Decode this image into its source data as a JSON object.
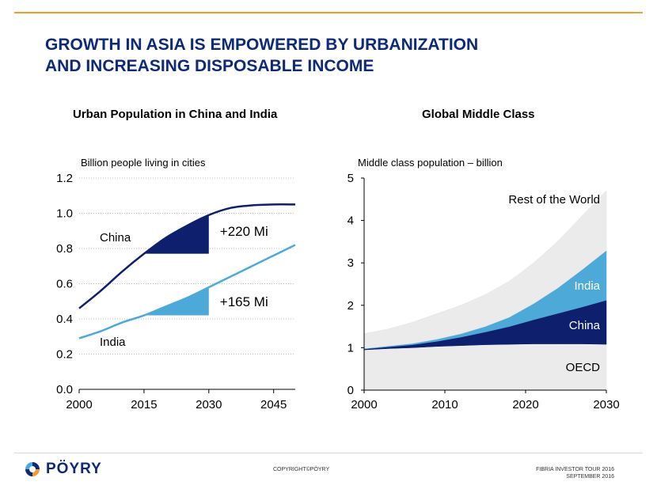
{
  "slide": {
    "title_line1": "GROWTH IN ASIA IS EMPOWERED BY URBANIZATION",
    "title_line2": "AND INCREASING DISPOSABLE INCOME",
    "copyright": "COPYRIGHT©PÖYRY",
    "event_line1": "FIBRIA INVESTOR TOUR 2016",
    "event_line2": "SEPTEMBER 2016",
    "logo_text": "PÖYRY",
    "accent_color": "#f39c30",
    "brand_color": "#0d2a7a"
  },
  "chart_data": [
    {
      "type": "line",
      "title": "Urban Population in China and India",
      "ylabel": "Billion people living in cities",
      "xlim": [
        2000,
        2050
      ],
      "ylim": [
        0,
        1.2
      ],
      "yticks": [
        "0.0",
        "0.2",
        "0.4",
        "0.6",
        "0.8",
        "1.0",
        "1.2"
      ],
      "xticks": [
        "2000",
        "2015",
        "2030",
        "2045"
      ],
      "series": [
        {
          "name": "China",
          "color": "#0d1f6d",
          "x": [
            2000,
            2005,
            2010,
            2015,
            2020,
            2025,
            2030,
            2035,
            2040,
            2045,
            2050
          ],
          "y": [
            0.46,
            0.56,
            0.67,
            0.77,
            0.86,
            0.93,
            0.99,
            1.03,
            1.045,
            1.05,
            1.05
          ]
        },
        {
          "name": "India",
          "color": "#4da9d8",
          "x": [
            2000,
            2005,
            2010,
            2015,
            2020,
            2025,
            2030,
            2035,
            2040,
            2045,
            2050
          ],
          "y": [
            0.29,
            0.33,
            0.38,
            0.42,
            0.47,
            0.52,
            0.58,
            0.64,
            0.7,
            0.76,
            0.82
          ]
        }
      ],
      "annotations": [
        {
          "text": "+220 Mi",
          "series": "China",
          "from_year": 2015,
          "to_year": 2030
        },
        {
          "text": "+165 Mi",
          "series": "India",
          "from_year": 2015,
          "to_year": 2030
        }
      ]
    },
    {
      "type": "area",
      "title": "Global Middle Class",
      "ylabel": "Middle class population – billion",
      "xlim": [
        2000,
        2030
      ],
      "ylim": [
        0,
        5
      ],
      "yticks": [
        "0",
        "1",
        "2",
        "3",
        "4",
        "5"
      ],
      "xticks": [
        "2000",
        "2010",
        "2020",
        "2030"
      ],
      "x": [
        2000,
        2003,
        2006,
        2009,
        2012,
        2015,
        2018,
        2021,
        2024,
        2027,
        2030
      ],
      "series": [
        {
          "name": "OECD",
          "color": "#ebebeb",
          "text_color": "#000000",
          "values": [
            0.95,
            0.98,
            1.0,
            1.03,
            1.05,
            1.07,
            1.08,
            1.09,
            1.09,
            1.09,
            1.08
          ]
        },
        {
          "name": "China",
          "color": "#0d1f6d",
          "text_color": "#ffffff",
          "values": [
            0.02,
            0.04,
            0.07,
            0.12,
            0.2,
            0.3,
            0.42,
            0.57,
            0.72,
            0.87,
            1.04
          ]
        },
        {
          "name": "India",
          "color": "#4da9d8",
          "text_color": "#ffffff",
          "values": [
            0.01,
            0.02,
            0.03,
            0.05,
            0.08,
            0.13,
            0.22,
            0.38,
            0.6,
            0.88,
            1.17
          ]
        },
        {
          "name": "Rest of the World",
          "color": "#ebebeb",
          "text_color": "#000000",
          "values": [
            0.35,
            0.4,
            0.5,
            0.6,
            0.67,
            0.75,
            0.85,
            0.96,
            1.1,
            1.27,
            1.41
          ]
        }
      ]
    }
  ]
}
